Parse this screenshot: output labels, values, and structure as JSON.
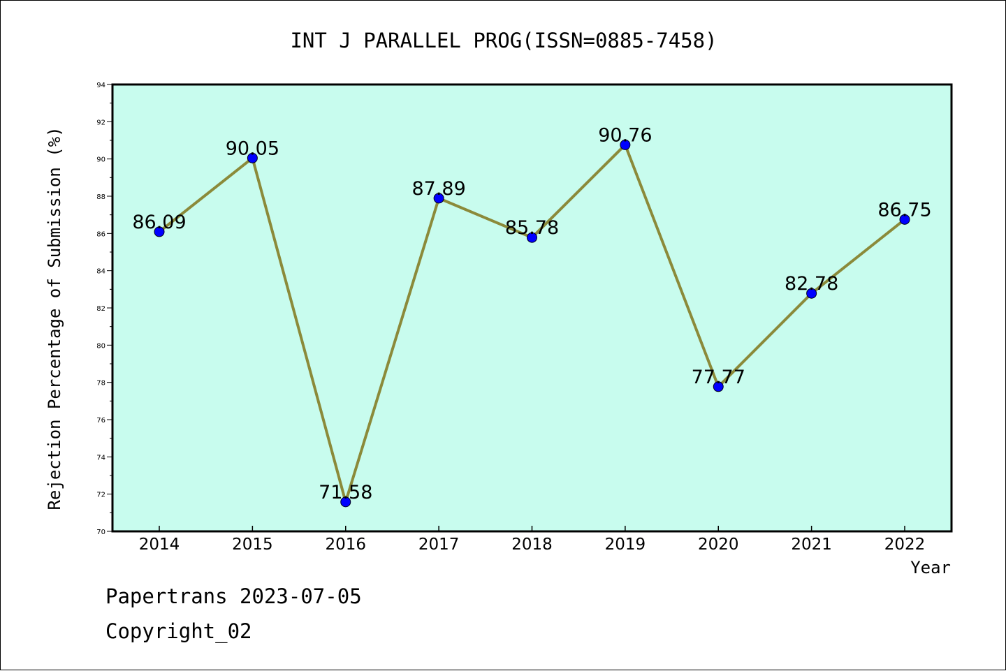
{
  "chart_data": {
    "type": "line",
    "title": "INT J PARALLEL PROG(ISSN=0885-7458)",
    "xlabel": "Year",
    "ylabel": "Rejection Percentage of Submission (%)",
    "categories": [
      "2014",
      "2015",
      "2016",
      "2017",
      "2018",
      "2019",
      "2020",
      "2021",
      "2022"
    ],
    "series": [
      {
        "values": [
          86.09,
          90.05,
          71.58,
          87.89,
          85.78,
          90.76,
          77.77,
          82.78,
          86.75
        ]
      }
    ],
    "data_labels": [
      "86.09",
      "90.05",
      "71.58",
      "87.89",
      "85.78",
      "90.76",
      "77.77",
      "82.78",
      "86.75"
    ],
    "ylim": [
      70,
      94
    ],
    "yticks": [
      "70",
      "72",
      "74",
      "76",
      "78",
      "80",
      "82",
      "84",
      "86",
      "88",
      "90",
      "92",
      "94"
    ],
    "grid": false,
    "colors": {
      "plot_background": "#c8fcee",
      "line": "#8b8a3a",
      "marker": "#0000ff"
    }
  },
  "footer": {
    "line1": "Papertrans 2023-07-05",
    "line2": "Copyright_02"
  }
}
